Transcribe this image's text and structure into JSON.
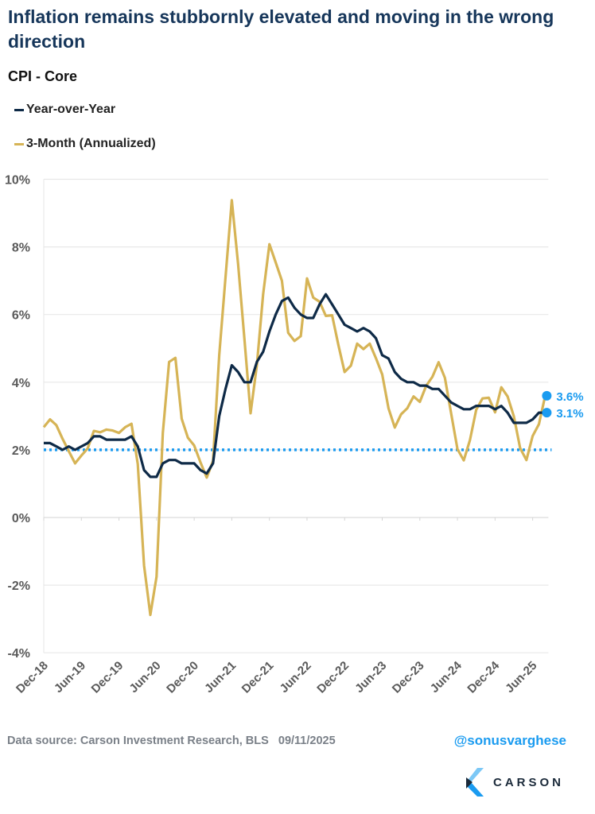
{
  "title": "Inflation remains stubbornly elevated and moving in the wrong direction",
  "subtitle": "CPI - Core",
  "legend": [
    {
      "label": "Year-over-Year",
      "color": "#0e2a47"
    },
    {
      "label": "3-Month (Annualized)",
      "color": "#d6b456"
    }
  ],
  "footer": {
    "source": "Data source: Carson Investment Research, BLS",
    "date": "09/11/2025",
    "handle": "@sonusvarghese",
    "logo_text": "CARSON"
  },
  "chart_data": {
    "type": "line",
    "title": "",
    "xlabel": "",
    "ylabel": "",
    "ylim": [
      -4,
      10
    ],
    "yticks": [
      "-4%",
      "-2%",
      "0%",
      "2%",
      "4%",
      "6%",
      "8%",
      "10%"
    ],
    "ytick_values": [
      -4,
      -2,
      0,
      2,
      4,
      6,
      8,
      10
    ],
    "xtick_labels": [
      "Dec-18",
      "Jun-19",
      "Dec-19",
      "Jun-20",
      "Dec-20",
      "Jun-21",
      "Dec-21",
      "Jun-22",
      "Dec-22",
      "Jun-23",
      "Dec-23",
      "Jun-24",
      "Dec-24",
      "Jun-25"
    ],
    "grid": "horizontal",
    "legend_position": "top-left",
    "x": [
      "Dec-18",
      "Jan-19",
      "Feb-19",
      "Mar-19",
      "Apr-19",
      "May-19",
      "Jun-19",
      "Jul-19",
      "Aug-19",
      "Sep-19",
      "Oct-19",
      "Nov-19",
      "Dec-19",
      "Jan-20",
      "Feb-20",
      "Mar-20",
      "Apr-20",
      "May-20",
      "Jun-20",
      "Jul-20",
      "Aug-20",
      "Sep-20",
      "Oct-20",
      "Nov-20",
      "Dec-20",
      "Jan-21",
      "Feb-21",
      "Mar-21",
      "Apr-21",
      "May-21",
      "Jun-21",
      "Jul-21",
      "Aug-21",
      "Sep-21",
      "Oct-21",
      "Nov-21",
      "Dec-21",
      "Jan-22",
      "Feb-22",
      "Mar-22",
      "Apr-22",
      "May-22",
      "Jun-22",
      "Jul-22",
      "Aug-22",
      "Sep-22",
      "Oct-22",
      "Nov-22",
      "Dec-22",
      "Jan-23",
      "Feb-23",
      "Mar-23",
      "Apr-23",
      "May-23",
      "Jun-23",
      "Jul-23",
      "Aug-23",
      "Sep-23",
      "Oct-23",
      "Nov-23",
      "Dec-23",
      "Jan-24",
      "Feb-24",
      "Mar-24",
      "Apr-24",
      "May-24",
      "Jun-24",
      "Jul-24",
      "Aug-24",
      "Sep-24",
      "Oct-24",
      "Nov-24",
      "Dec-24",
      "Jan-25",
      "Feb-25",
      "Mar-25",
      "Apr-25",
      "May-25",
      "Jun-25",
      "Jul-25",
      "Aug-25"
    ],
    "series": [
      {
        "name": "Year-over-Year",
        "color": "#0e2a47",
        "values": [
          2.2,
          2.2,
          2.1,
          2.0,
          2.1,
          2.0,
          2.1,
          2.2,
          2.4,
          2.4,
          2.3,
          2.3,
          2.3,
          2.3,
          2.4,
          2.1,
          1.4,
          1.2,
          1.2,
          1.6,
          1.7,
          1.7,
          1.6,
          1.6,
          1.6,
          1.4,
          1.3,
          1.6,
          3.0,
          3.8,
          4.5,
          4.3,
          4.0,
          4.0,
          4.6,
          4.9,
          5.5,
          6.0,
          6.4,
          6.5,
          6.2,
          6.0,
          5.9,
          5.9,
          6.3,
          6.6,
          6.3,
          6.0,
          5.7,
          5.6,
          5.5,
          5.6,
          5.5,
          5.3,
          4.8,
          4.7,
          4.3,
          4.1,
          4.0,
          4.0,
          3.9,
          3.9,
          3.8,
          3.8,
          3.6,
          3.4,
          3.3,
          3.2,
          3.2,
          3.3,
          3.3,
          3.3,
          3.2,
          3.3,
          3.1,
          2.8,
          2.8,
          2.8,
          2.9,
          3.1,
          3.1
        ],
        "end_label": "3.1%"
      },
      {
        "name": "3-Month (Annualized)",
        "color": "#d6b456",
        "values": [
          2.67,
          2.9,
          2.73,
          2.33,
          1.96,
          1.6,
          1.83,
          2.04,
          2.56,
          2.52,
          2.6,
          2.57,
          2.5,
          2.67,
          2.77,
          1.58,
          -1.42,
          -2.88,
          -1.75,
          2.5,
          4.6,
          4.72,
          2.92,
          2.36,
          2.13,
          1.63,
          1.18,
          1.67,
          4.8,
          7.1,
          9.38,
          7.5,
          5.3,
          3.08,
          4.5,
          6.6,
          8.08,
          7.54,
          7.0,
          5.46,
          5.22,
          5.36,
          7.07,
          6.5,
          6.38,
          5.96,
          5.98,
          5.1,
          4.3,
          4.49,
          5.14,
          4.98,
          5.14,
          4.71,
          4.23,
          3.23,
          2.66,
          3.05,
          3.23,
          3.58,
          3.42,
          3.89,
          4.16,
          4.59,
          4.13,
          3.07,
          2.02,
          1.69,
          2.29,
          3.19,
          3.52,
          3.54,
          3.11,
          3.85,
          3.58,
          2.99,
          2.05,
          1.7,
          2.41,
          2.76,
          3.6
        ],
        "end_label": "3.6%"
      }
    ],
    "reference_line": {
      "value": 2,
      "color": "#1a9bf0",
      "style": "dotted"
    },
    "end_marker_color": "#1a9bf0"
  }
}
